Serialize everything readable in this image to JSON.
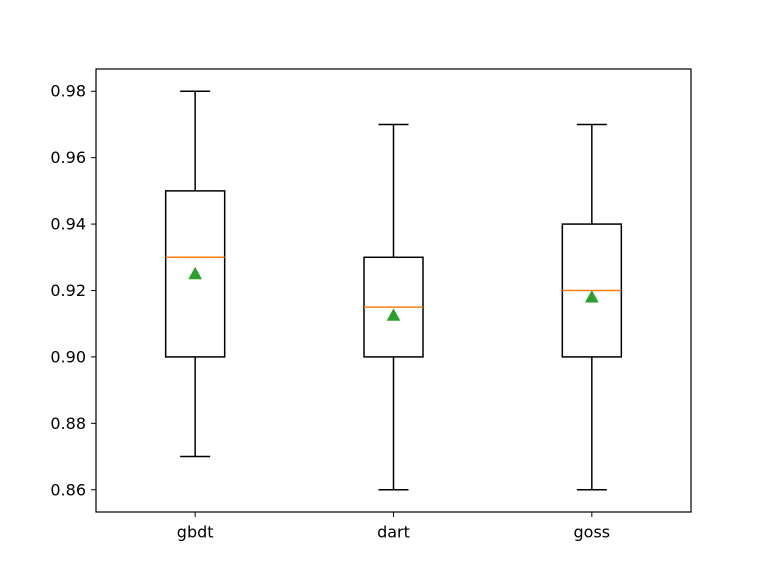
{
  "chart_data": {
    "type": "box",
    "categories": [
      "gbdt",
      "dart",
      "goss"
    ],
    "boxes": [
      {
        "name": "gbdt",
        "whisker_low": 0.87,
        "q1": 0.9,
        "median": 0.93,
        "q3": 0.95,
        "whisker_high": 0.98,
        "mean": 0.925
      },
      {
        "name": "dart",
        "whisker_low": 0.86,
        "q1": 0.9,
        "median": 0.915,
        "q3": 0.93,
        "whisker_high": 0.97,
        "mean": 0.9125
      },
      {
        "name": "goss",
        "whisker_low": 0.86,
        "q1": 0.9,
        "median": 0.92,
        "q3": 0.94,
        "whisker_high": 0.97,
        "mean": 0.918
      }
    ],
    "yticks": [
      0.86,
      0.88,
      0.9,
      0.92,
      0.94,
      0.96,
      0.98
    ],
    "ytick_labels": [
      "0.86",
      "0.88",
      "0.90",
      "0.92",
      "0.94",
      "0.96",
      "0.98"
    ],
    "ylim": [
      0.8533,
      0.9867
    ],
    "title": "",
    "xlabel": "",
    "ylabel": "",
    "grid": false,
    "colors": {
      "box": "#000000",
      "median": "#ff7f0e",
      "mean": "#2ca02c"
    }
  }
}
